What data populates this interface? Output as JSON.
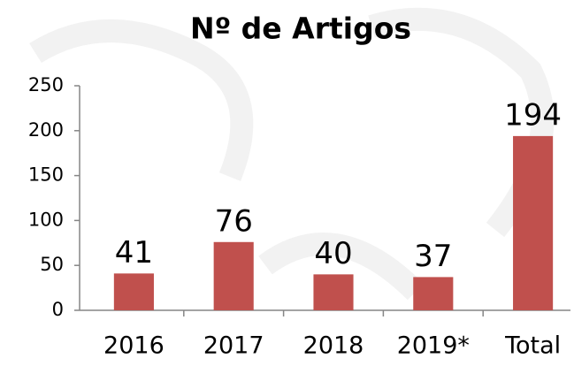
{
  "chart_data": {
    "type": "bar",
    "title": "Nº de Artigos",
    "categories": [
      "2016",
      "2017",
      "2018",
      "2019*",
      "Total"
    ],
    "values": [
      41,
      76,
      40,
      37,
      194
    ],
    "color": "#c0504d",
    "ylim": [
      0,
      250
    ],
    "yticks": [
      0,
      50,
      100,
      150,
      200,
      250
    ],
    "grid": false,
    "data_labels": true
  }
}
